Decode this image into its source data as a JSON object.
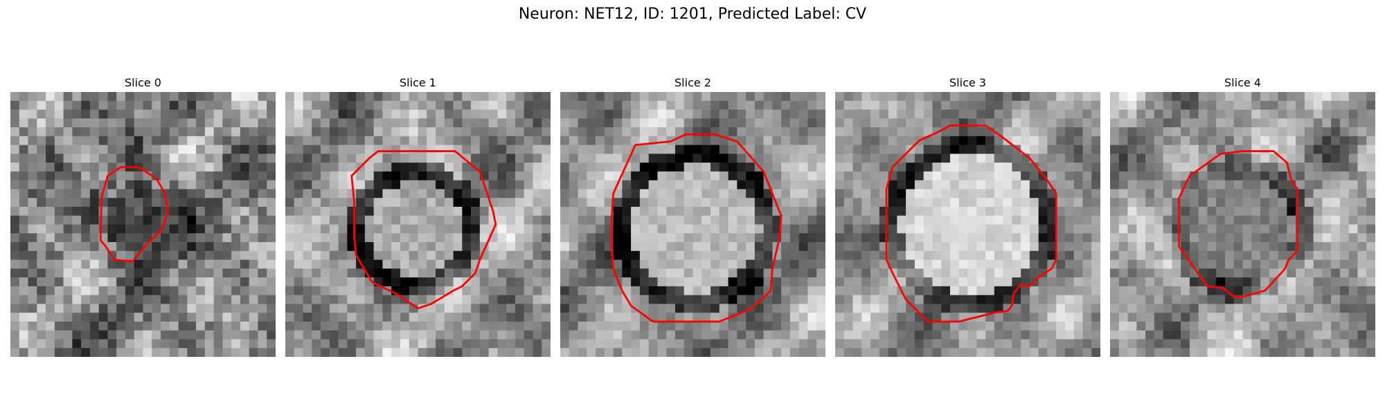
{
  "figure": {
    "title": "Neuron: NET12, ID: 1201, Predicted Label: CV",
    "contour_color": "#ff0000"
  },
  "panels": [
    {
      "title": "Slice 0"
    },
    {
      "title": "Slice 1"
    },
    {
      "title": "Slice 2"
    },
    {
      "title": "Slice 3"
    },
    {
      "title": "Slice 4"
    }
  ]
}
